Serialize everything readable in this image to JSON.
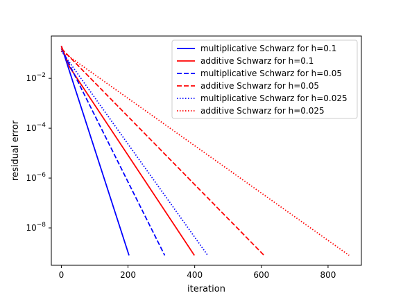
{
  "chart_data": {
    "type": "line",
    "title": "",
    "xlabel": "iteration",
    "ylabel": "residual error",
    "xlim": [
      -30,
      900
    ],
    "ylim_log10": [
      -9.5,
      -0.3
    ],
    "x_ticks": [
      0,
      200,
      400,
      600,
      800
    ],
    "x_tick_labels": [
      "0",
      "200",
      "400",
      "600",
      "800"
    ],
    "y_ticks_log10": [
      -8,
      -6,
      -4,
      -2
    ],
    "y_tick_labels": [
      {
        "base": "10",
        "exp": "−8"
      },
      {
        "base": "10",
        "exp": "−6"
      },
      {
        "base": "10",
        "exp": "−4"
      },
      {
        "base": "10",
        "exp": "−2"
      }
    ],
    "y_scale": "log",
    "grid": false,
    "legend_position": "upper-right",
    "series": [
      {
        "name": "multiplicative Schwarz for h=0.1",
        "color": "#0000ff",
        "linestyle": "solid",
        "x": [
          0,
          203
        ],
        "y_log10": [
          -0.7,
          -9.1
        ]
      },
      {
        "name": "additive Schwarz for h=0.1",
        "color": "#ff0000",
        "linestyle": "solid",
        "x": [
          0,
          25,
          399
        ],
        "y_log10": [
          -0.7,
          -1.55,
          -9.1
        ]
      },
      {
        "name": "multiplicative Schwarz for h=0.05",
        "color": "#0000ff",
        "linestyle": "dashed",
        "x": [
          0,
          310
        ],
        "y_log10": [
          -0.8,
          -9.1
        ]
      },
      {
        "name": "additive Schwarz for h=0.05",
        "color": "#ff0000",
        "linestyle": "dashed",
        "x": [
          0,
          608
        ],
        "y_log10": [
          -0.8,
          -9.1
        ]
      },
      {
        "name": "multiplicative Schwarz for h=0.025",
        "color": "#0000ff",
        "linestyle": "dotted",
        "x": [
          0,
          439
        ],
        "y_log10": [
          -0.9,
          -9.1
        ]
      },
      {
        "name": "additive Schwarz for h=0.025",
        "color": "#ff0000",
        "linestyle": "dotted",
        "x": [
          0,
          863
        ],
        "y_log10": [
          -0.9,
          -9.1
        ]
      }
    ]
  }
}
